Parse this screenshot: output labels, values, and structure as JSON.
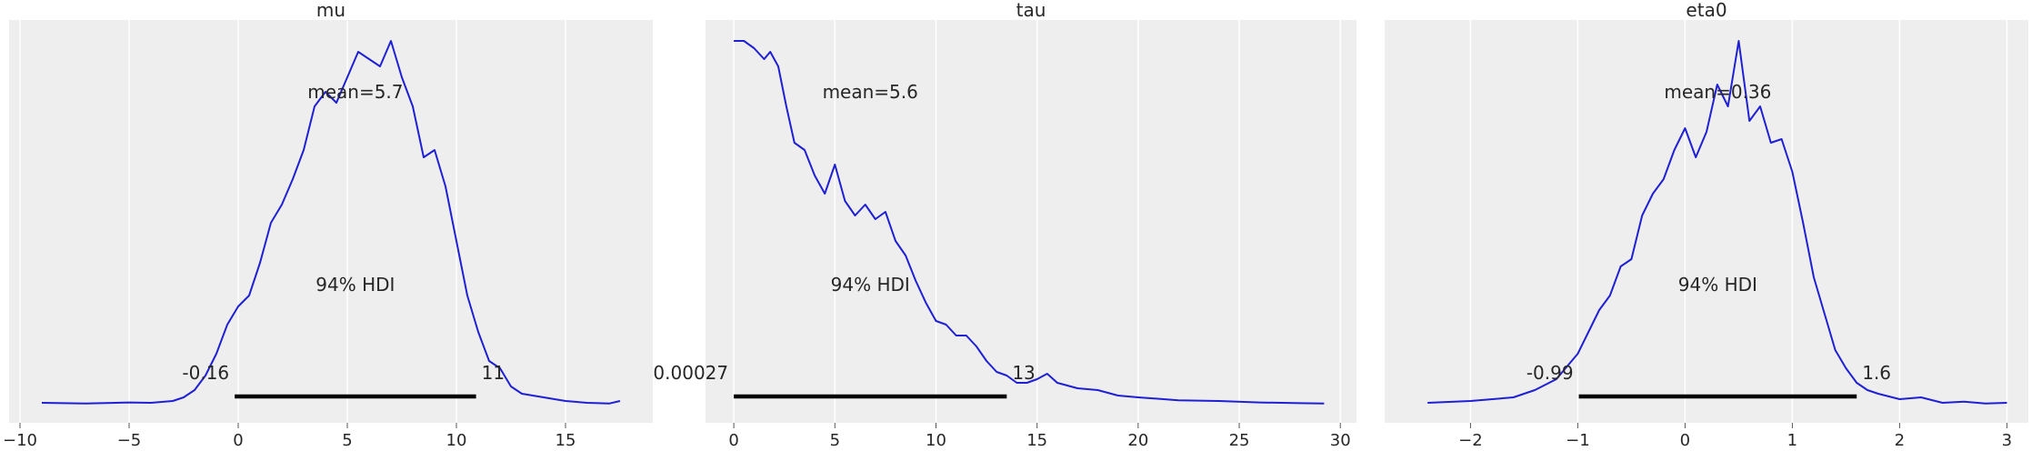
{
  "chart_data": [
    {
      "type": "line",
      "title": "mu",
      "xlim": [
        -10.5,
        19.0
      ],
      "xticks": [
        -10,
        -5,
        0,
        5,
        10,
        15
      ],
      "xtick_labels": [
        "−10",
        "−5",
        "0",
        "5",
        "10",
        "15"
      ],
      "grid": true,
      "line_color": "#1f1fd4",
      "density_x": [
        -9.0,
        -7.0,
        -5.0,
        -4.0,
        -3.0,
        -2.5,
        -2.0,
        -1.5,
        -1.0,
        -0.5,
        0.0,
        0.5,
        1.0,
        1.5,
        2.0,
        2.5,
        3.0,
        3.5,
        4.0,
        4.5,
        5.0,
        5.5,
        6.0,
        6.5,
        7.0,
        7.5,
        8.0,
        8.5,
        9.0,
        9.5,
        10.0,
        10.5,
        11.0,
        11.5,
        12.0,
        12.5,
        13.0,
        14.0,
        15.0,
        16.0,
        17.0,
        17.5
      ],
      "density_y": [
        0.005,
        0.003,
        0.006,
        0.005,
        0.01,
        0.02,
        0.04,
        0.08,
        0.14,
        0.22,
        0.27,
        0.3,
        0.39,
        0.5,
        0.55,
        0.62,
        0.7,
        0.82,
        0.86,
        0.83,
        0.9,
        0.97,
        0.95,
        0.93,
        1.0,
        0.9,
        0.82,
        0.68,
        0.7,
        0.6,
        0.45,
        0.3,
        0.2,
        0.12,
        0.1,
        0.05,
        0.03,
        0.02,
        0.01,
        0.005,
        0.003,
        0.01
      ],
      "mean_label": "mean=5.7",
      "hdi_label": "94% HDI",
      "hdi_lower": -0.16,
      "hdi_upper": 10.9,
      "hdi_lower_label": "-0.16",
      "hdi_upper_label": "11"
    },
    {
      "type": "line",
      "title": "tau",
      "xlim": [
        -1.4,
        30.8
      ],
      "xticks": [
        0,
        5,
        10,
        15,
        20,
        25,
        30
      ],
      "xtick_labels": [
        "0",
        "5",
        "10",
        "15",
        "20",
        "25",
        "30"
      ],
      "grid": true,
      "line_color": "#1f1fd4",
      "density_x": [
        0.0,
        0.5,
        1.0,
        1.5,
        1.8,
        2.2,
        2.6,
        3.0,
        3.5,
        4.0,
        4.5,
        5.0,
        5.5,
        6.0,
        6.5,
        7.0,
        7.5,
        8.0,
        8.5,
        9.0,
        9.5,
        10.0,
        10.5,
        11.0,
        11.5,
        12.0,
        12.5,
        13.0,
        13.5,
        14.0,
        14.5,
        15.0,
        15.5,
        16.0,
        17.0,
        18.0,
        19.0,
        20.0,
        22.0,
        24.0,
        26.0,
        28.0,
        29.2
      ],
      "density_y": [
        1.0,
        1.0,
        0.98,
        0.95,
        0.97,
        0.93,
        0.82,
        0.72,
        0.7,
        0.63,
        0.58,
        0.66,
        0.56,
        0.52,
        0.55,
        0.51,
        0.53,
        0.45,
        0.41,
        0.34,
        0.28,
        0.23,
        0.22,
        0.19,
        0.19,
        0.16,
        0.12,
        0.09,
        0.08,
        0.06,
        0.06,
        0.07,
        0.085,
        0.06,
        0.045,
        0.04,
        0.025,
        0.02,
        0.012,
        0.01,
        0.006,
        0.004,
        0.003
      ],
      "mean_label": "mean=5.6",
      "hdi_label": "94% HDI",
      "hdi_lower": 0.0,
      "hdi_upper": 13.5,
      "hdi_lower_label": "0.00027",
      "hdi_upper_label": "13"
    },
    {
      "type": "line",
      "title": "eta0",
      "xlim": [
        -2.8,
        3.2
      ],
      "xticks": [
        -2,
        -1,
        0,
        1,
        2,
        3
      ],
      "xtick_labels": [
        "−2",
        "−1",
        "0",
        "1",
        "2",
        "3"
      ],
      "grid": true,
      "line_color": "#1f1fd4",
      "density_x": [
        -2.4,
        -2.0,
        -1.6,
        -1.4,
        -1.2,
        -1.0,
        -0.9,
        -0.8,
        -0.7,
        -0.6,
        -0.5,
        -0.4,
        -0.3,
        -0.2,
        -0.1,
        0.0,
        0.1,
        0.2,
        0.3,
        0.4,
        0.5,
        0.6,
        0.7,
        0.8,
        0.9,
        1.0,
        1.1,
        1.2,
        1.3,
        1.4,
        1.5,
        1.6,
        1.7,
        1.8,
        2.0,
        2.2,
        2.4,
        2.6,
        2.8,
        3.0
      ],
      "density_y": [
        0.005,
        0.01,
        0.02,
        0.04,
        0.07,
        0.14,
        0.2,
        0.26,
        0.3,
        0.38,
        0.4,
        0.52,
        0.58,
        0.62,
        0.7,
        0.76,
        0.68,
        0.75,
        0.88,
        0.82,
        1.0,
        0.78,
        0.82,
        0.72,
        0.73,
        0.64,
        0.5,
        0.35,
        0.25,
        0.15,
        0.1,
        0.06,
        0.04,
        0.03,
        0.015,
        0.02,
        0.005,
        0.008,
        0.003,
        0.005
      ],
      "mean_label": "mean=0.36",
      "hdi_label": "94% HDI",
      "hdi_lower": -0.99,
      "hdi_upper": 1.6,
      "hdi_lower_label": "-0.99",
      "hdi_upper_label": "1.6"
    }
  ]
}
